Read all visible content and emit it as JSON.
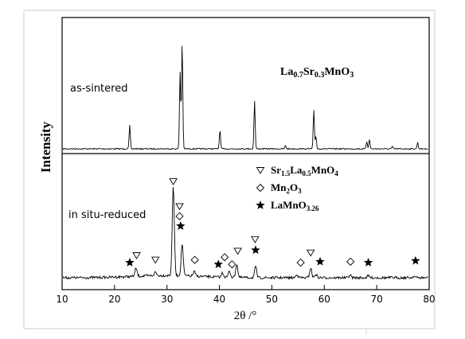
{
  "chart_data": {
    "type": "line",
    "xlabel": "2θ /°",
    "ylabel": "Intensity",
    "xlim": [
      10,
      80
    ],
    "x_ticks": [
      10,
      20,
      30,
      40,
      50,
      60,
      70,
      80
    ],
    "grid": false,
    "panels": [
      {
        "label": "as-sintered",
        "annotation": {
          "base": "La",
          "parts": [
            [
              "sub",
              "0.7"
            ],
            [
              "base",
              "Sr"
            ],
            [
              "sub",
              "0.3"
            ],
            [
              "base",
              "MnO"
            ],
            [
              "sub",
              "3"
            ]
          ]
        },
        "peaks": [
          {
            "x": 22.9,
            "h": 0.22
          },
          {
            "x": 32.5,
            "h": 0.72
          },
          {
            "x": 32.9,
            "h": 1.0
          },
          {
            "x": 40.1,
            "h": 0.18
          },
          {
            "x": 46.7,
            "h": 0.45
          },
          {
            "x": 52.6,
            "h": 0.03
          },
          {
            "x": 58.0,
            "h": 0.36
          },
          {
            "x": 58.4,
            "h": 0.12
          },
          {
            "x": 68.1,
            "h": 0.07
          },
          {
            "x": 68.6,
            "h": 0.09
          },
          {
            "x": 73.0,
            "h": 0.02
          },
          {
            "x": 77.8,
            "h": 0.06
          }
        ]
      },
      {
        "label": "in situ-reduced",
        "peaks": [
          {
            "x": 24.1,
            "h": 0.09
          },
          {
            "x": 27.8,
            "h": 0.04
          },
          {
            "x": 31.2,
            "h": 1.0
          },
          {
            "x": 32.9,
            "h": 0.36
          },
          {
            "x": 35.2,
            "h": 0.05
          },
          {
            "x": 40.6,
            "h": 0.05
          },
          {
            "x": 41.9,
            "h": 0.07
          },
          {
            "x": 43.3,
            "h": 0.15
          },
          {
            "x": 46.9,
            "h": 0.12
          },
          {
            "x": 54.8,
            "h": 0.04
          },
          {
            "x": 57.4,
            "h": 0.11
          },
          {
            "x": 58.4,
            "h": 0.04
          },
          {
            "x": 64.9,
            "h": 0.03
          },
          {
            "x": 68.4,
            "h": 0.02
          },
          {
            "x": 77.1,
            "h": 0.02
          }
        ],
        "markers": [
          {
            "x": 22.9,
            "symbol": "star",
            "h": 0.17
          },
          {
            "x": 24.2,
            "symbol": "triangle",
            "h": 0.25
          },
          {
            "x": 27.8,
            "symbol": "triangle",
            "h": 0.2
          },
          {
            "x": 31.2,
            "symbol": "triangle",
            "h": 1.08
          },
          {
            "x": 32.4,
            "symbol": "triangle",
            "h": 0.8
          },
          {
            "x": 32.4,
            "symbol": "diamond",
            "h": 0.69
          },
          {
            "x": 32.6,
            "symbol": "star",
            "h": 0.58
          },
          {
            "x": 35.3,
            "symbol": "diamond",
            "h": 0.2
          },
          {
            "x": 39.8,
            "symbol": "star",
            "h": 0.15
          },
          {
            "x": 41.0,
            "symbol": "diamond",
            "h": 0.23
          },
          {
            "x": 42.4,
            "symbol": "diamond",
            "h": 0.15
          },
          {
            "x": 43.5,
            "symbol": "triangle",
            "h": 0.3
          },
          {
            "x": 46.8,
            "symbol": "triangle",
            "h": 0.43
          },
          {
            "x": 46.9,
            "symbol": "star",
            "h": 0.31
          },
          {
            "x": 55.5,
            "symbol": "diamond",
            "h": 0.17
          },
          {
            "x": 57.4,
            "symbol": "triangle",
            "h": 0.28
          },
          {
            "x": 59.2,
            "symbol": "star",
            "h": 0.18
          },
          {
            "x": 65.0,
            "symbol": "diamond",
            "h": 0.18
          },
          {
            "x": 68.4,
            "symbol": "star",
            "h": 0.17
          },
          {
            "x": 77.4,
            "symbol": "star",
            "h": 0.19
          }
        ],
        "legend": [
          {
            "symbol": "triangle",
            "parts": [
              [
                "base",
                "Sr"
              ],
              [
                "sub",
                "1.5"
              ],
              [
                "base",
                "La"
              ],
              [
                "sub",
                "0.5"
              ],
              [
                "base",
                "MnO"
              ],
              [
                "sub",
                "4"
              ]
            ]
          },
          {
            "symbol": "diamond",
            "parts": [
              [
                "base",
                "Mn"
              ],
              [
                "sub",
                "2"
              ],
              [
                "base",
                "O"
              ],
              [
                "sub",
                "3"
              ]
            ]
          },
          {
            "symbol": "star",
            "parts": [
              [
                "base",
                "LaMnO"
              ],
              [
                "sub",
                "3.26"
              ]
            ]
          }
        ]
      }
    ]
  }
}
